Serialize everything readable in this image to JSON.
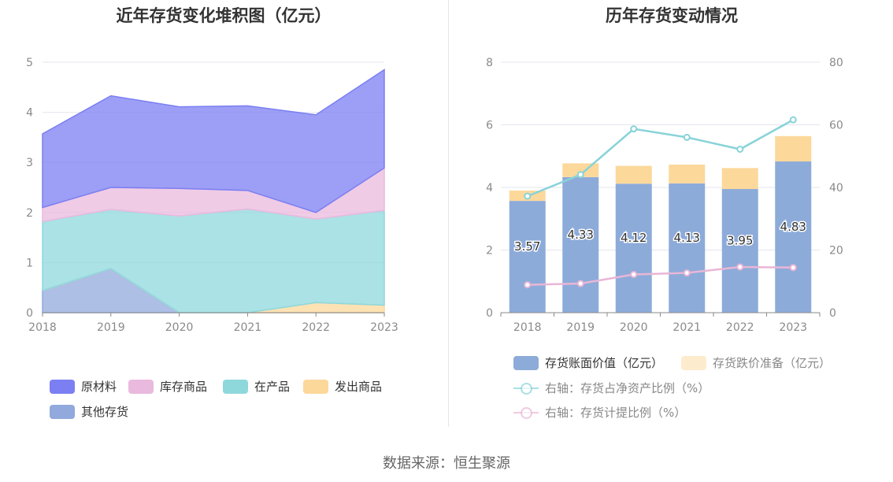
{
  "footer": {
    "source": "数据来源：恒生聚源"
  },
  "chart_data": [
    {
      "type": "area",
      "stacked": true,
      "title": "近年存货变化堆积图（亿元）",
      "categories": [
        "2018",
        "2019",
        "2020",
        "2021",
        "2022",
        "2023"
      ],
      "ylim": [
        0,
        5
      ],
      "yticks": [
        "0",
        "1",
        "2",
        "3",
        "4",
        "5"
      ],
      "grid": true,
      "legend_position": "bottom",
      "series": [
        {
          "name": "其他存货",
          "color": "#91a9dc",
          "values": [
            0.44,
            0.88,
            0.0,
            0.0,
            0.0,
            0.0
          ]
        },
        {
          "name": "发出商品",
          "color": "#fcd89b",
          "values": [
            0.0,
            0.0,
            0.0,
            0.0,
            0.2,
            0.15
          ]
        },
        {
          "name": "在产品",
          "color": "#8ed8dc",
          "values": [
            1.38,
            1.18,
            1.93,
            2.07,
            1.67,
            1.89
          ]
        },
        {
          "name": "库存商品",
          "color": "#eab9de",
          "values": [
            0.28,
            0.44,
            0.55,
            0.37,
            0.13,
            0.85
          ]
        },
        {
          "name": "原材料",
          "color": "#7b7ff2",
          "values": [
            1.47,
            1.83,
            1.63,
            1.69,
            1.95,
            1.96
          ]
        }
      ],
      "legend_order": [
        "原材料",
        "库存商品",
        "在产品",
        "发出商品",
        "其他存货"
      ]
    },
    {
      "type": "bar",
      "stacked": true,
      "title": "历年存货变动情况",
      "categories": [
        "2018",
        "2019",
        "2020",
        "2021",
        "2022",
        "2023"
      ],
      "ylim": [
        0,
        8
      ],
      "yticks": [
        "0",
        "2",
        "4",
        "6",
        "8"
      ],
      "y2lim": [
        0,
        80
      ],
      "y2ticks": [
        "0",
        "20",
        "40",
        "60",
        "80"
      ],
      "grid": true,
      "legend_position": "bottom",
      "bars": [
        {
          "name": "存货账面价值（亿元）",
          "color": "#8dabd9",
          "values": [
            3.57,
            4.33,
            4.12,
            4.13,
            3.95,
            4.83
          ],
          "labels": [
            "3.57",
            "4.33",
            "4.12",
            "4.13",
            "3.95",
            "4.83"
          ]
        },
        {
          "name": "存货跌价准备（亿元）",
          "color": "#fcd89b",
          "values": [
            0.33,
            0.44,
            0.57,
            0.6,
            0.67,
            0.81
          ]
        }
      ],
      "lines": [
        {
          "name": "右轴：存货占净资产比例（%）",
          "color": "#88d3d8",
          "axis": "right",
          "values": [
            37.2,
            44.1,
            58.7,
            56.0,
            52.2,
            61.6
          ]
        },
        {
          "name": "右轴：存货计提比例（%）",
          "color": "#e9b6d6",
          "axis": "right",
          "values": [
            8.9,
            9.3,
            12.2,
            12.7,
            14.6,
            14.4
          ]
        }
      ]
    }
  ]
}
